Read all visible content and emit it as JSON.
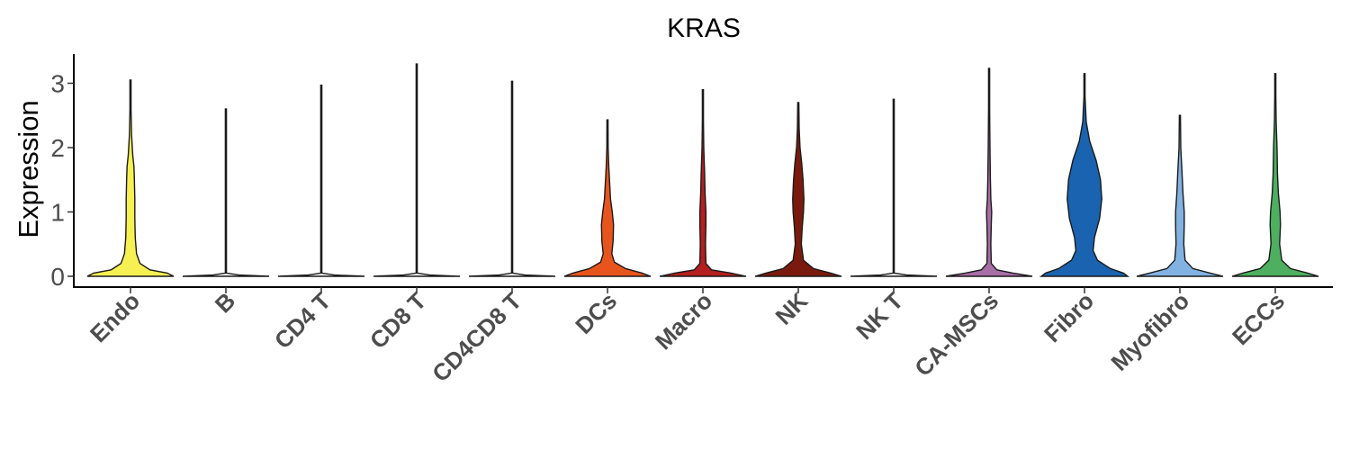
{
  "chart_data": {
    "type": "violin",
    "title": "KRAS",
    "ylabel": "Expression",
    "xlabel": "",
    "ylim": [
      -0.2,
      3.5
    ],
    "yticks": [
      0,
      1,
      2,
      3
    ],
    "categories": [
      "Endo",
      "B",
      "CD4 T",
      "CD8 T",
      "CD4CD8 T",
      "DCs",
      "Macro",
      "NK",
      "NK T",
      "CA-MSCs",
      "Fibro",
      "Myofibro",
      "ECCs"
    ],
    "series": [
      {
        "category": "Endo",
        "color": "#f7f052",
        "max": 3.05,
        "profile": [
          [
            0,
            1.0
          ],
          [
            0.05,
            0.85
          ],
          [
            0.1,
            0.45
          ],
          [
            0.2,
            0.22
          ],
          [
            0.35,
            0.14
          ],
          [
            0.6,
            0.11
          ],
          [
            0.9,
            0.1
          ],
          [
            1.2,
            0.1
          ],
          [
            1.5,
            0.09
          ],
          [
            1.7,
            0.08
          ],
          [
            1.9,
            0.05
          ],
          [
            2.2,
            0.025
          ],
          [
            2.6,
            0.01
          ],
          [
            3.05,
            0.0
          ]
        ]
      },
      {
        "category": "B",
        "color": "#f7f7f7",
        "max": 2.6,
        "profile": [
          [
            0,
            1.0
          ],
          [
            0.02,
            0.3
          ],
          [
            0.05,
            0.01
          ],
          [
            0.4,
            0.008
          ],
          [
            2.6,
            0.0
          ]
        ]
      },
      {
        "category": "CD4 T",
        "color": "#f7f7f7",
        "max": 2.97,
        "profile": [
          [
            0,
            1.0
          ],
          [
            0.02,
            0.3
          ],
          [
            0.05,
            0.01
          ],
          [
            0.4,
            0.008
          ],
          [
            2.97,
            0.0
          ]
        ]
      },
      {
        "category": "CD8 T",
        "color": "#f7f7f7",
        "max": 3.3,
        "profile": [
          [
            0,
            1.0
          ],
          [
            0.02,
            0.3
          ],
          [
            0.05,
            0.01
          ],
          [
            0.4,
            0.008
          ],
          [
            3.3,
            0.0
          ]
        ]
      },
      {
        "category": "CD4CD8 T",
        "color": "#f7f7f7",
        "max": 3.03,
        "profile": [
          [
            0,
            1.0
          ],
          [
            0.02,
            0.3
          ],
          [
            0.05,
            0.01
          ],
          [
            0.4,
            0.008
          ],
          [
            3.03,
            0.0
          ]
        ]
      },
      {
        "category": "DCs",
        "color": "#e8551c",
        "max": 2.43,
        "profile": [
          [
            0,
            1.0
          ],
          [
            0.05,
            0.8
          ],
          [
            0.12,
            0.42
          ],
          [
            0.22,
            0.16
          ],
          [
            0.35,
            0.1
          ],
          [
            0.55,
            0.13
          ],
          [
            0.8,
            0.14
          ],
          [
            1.0,
            0.11
          ],
          [
            1.2,
            0.07
          ],
          [
            1.45,
            0.05
          ],
          [
            1.7,
            0.03
          ],
          [
            2.0,
            0.015
          ],
          [
            2.43,
            0.0
          ]
        ]
      },
      {
        "category": "Macro",
        "color": "#b41f1f",
        "max": 2.9,
        "profile": [
          [
            0,
            1.0
          ],
          [
            0.05,
            0.65
          ],
          [
            0.1,
            0.2
          ],
          [
            0.2,
            0.07
          ],
          [
            0.5,
            0.06
          ],
          [
            0.8,
            0.07
          ],
          [
            1.0,
            0.07
          ],
          [
            1.3,
            0.05
          ],
          [
            1.6,
            0.04
          ],
          [
            2.0,
            0.02
          ],
          [
            2.4,
            0.01
          ],
          [
            2.9,
            0.0
          ]
        ]
      },
      {
        "category": "NK",
        "color": "#7a1a0e",
        "max": 2.7,
        "profile": [
          [
            0,
            1.0
          ],
          [
            0.05,
            0.75
          ],
          [
            0.12,
            0.35
          ],
          [
            0.25,
            0.12
          ],
          [
            0.5,
            0.07
          ],
          [
            0.75,
            0.09
          ],
          [
            1.0,
            0.12
          ],
          [
            1.2,
            0.13
          ],
          [
            1.5,
            0.11
          ],
          [
            1.75,
            0.08
          ],
          [
            2.0,
            0.04
          ],
          [
            2.3,
            0.02
          ],
          [
            2.7,
            0.0
          ]
        ]
      },
      {
        "category": "NK T",
        "color": "#f7f7f7",
        "max": 2.75,
        "profile": [
          [
            0,
            1.0
          ],
          [
            0.02,
            0.3
          ],
          [
            0.05,
            0.01
          ],
          [
            0.4,
            0.008
          ],
          [
            2.75,
            0.0
          ]
        ]
      },
      {
        "category": "CA-MSCs",
        "color": "#a86ea6",
        "max": 3.23,
        "profile": [
          [
            0,
            1.0
          ],
          [
            0.05,
            0.55
          ],
          [
            0.1,
            0.18
          ],
          [
            0.2,
            0.05
          ],
          [
            0.5,
            0.04
          ],
          [
            0.8,
            0.05
          ],
          [
            1.0,
            0.06
          ],
          [
            1.2,
            0.04
          ],
          [
            1.5,
            0.03
          ],
          [
            2.0,
            0.02
          ],
          [
            2.6,
            0.01
          ],
          [
            3.23,
            0.0
          ]
        ]
      },
      {
        "category": "Fibro",
        "color": "#1a63b0",
        "max": 3.15,
        "profile": [
          [
            0,
            1.0
          ],
          [
            0.05,
            0.9
          ],
          [
            0.12,
            0.6
          ],
          [
            0.25,
            0.3
          ],
          [
            0.4,
            0.2
          ],
          [
            0.6,
            0.23
          ],
          [
            0.9,
            0.35
          ],
          [
            1.2,
            0.4
          ],
          [
            1.5,
            0.37
          ],
          [
            1.8,
            0.27
          ],
          [
            2.1,
            0.12
          ],
          [
            2.4,
            0.04
          ],
          [
            2.8,
            0.01
          ],
          [
            3.15,
            0.0
          ]
        ]
      },
      {
        "category": "Myofibro",
        "color": "#82b2e2",
        "max": 2.5,
        "profile": [
          [
            0,
            1.0
          ],
          [
            0.05,
            0.7
          ],
          [
            0.12,
            0.3
          ],
          [
            0.25,
            0.12
          ],
          [
            0.5,
            0.09
          ],
          [
            0.8,
            0.1
          ],
          [
            1.0,
            0.1
          ],
          [
            1.3,
            0.07
          ],
          [
            1.6,
            0.05
          ],
          [
            2.0,
            0.02
          ],
          [
            2.5,
            0.0
          ]
        ]
      },
      {
        "category": "ECCs",
        "color": "#4daf5f",
        "max": 3.15,
        "profile": [
          [
            0,
            1.0
          ],
          [
            0.05,
            0.75
          ],
          [
            0.12,
            0.35
          ],
          [
            0.25,
            0.15
          ],
          [
            0.5,
            0.1
          ],
          [
            0.8,
            0.12
          ],
          [
            1.0,
            0.11
          ],
          [
            1.3,
            0.07
          ],
          [
            1.6,
            0.05
          ],
          [
            2.0,
            0.04
          ],
          [
            2.4,
            0.02
          ],
          [
            2.8,
            0.01
          ],
          [
            3.15,
            0.0
          ]
        ]
      }
    ]
  }
}
